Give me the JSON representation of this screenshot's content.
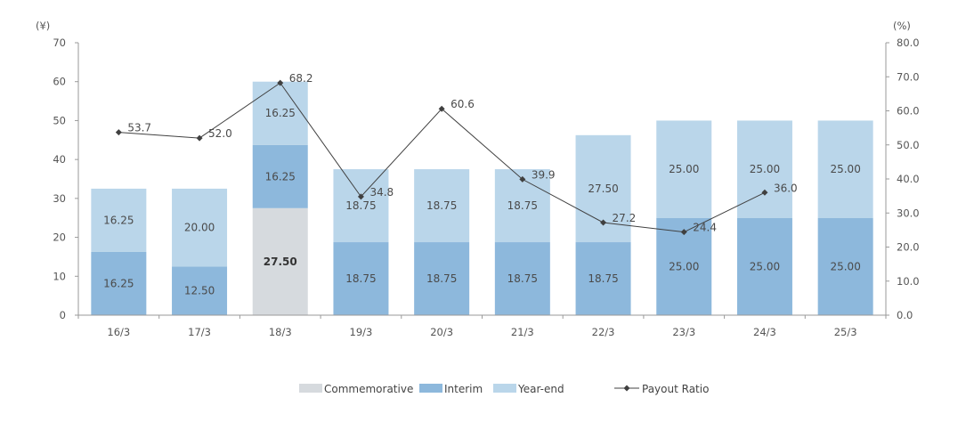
{
  "chart_data": {
    "type": "bar",
    "stacked": true,
    "categories": [
      "16/3",
      "17/3",
      "18/3",
      "19/3",
      "20/3",
      "21/3",
      "22/3",
      "23/3",
      "24/3",
      "25/3"
    ],
    "series": [
      {
        "name": "Commemorative",
        "values": [
          0,
          0,
          27.5,
          0,
          0,
          0,
          0,
          0,
          0,
          0
        ],
        "labels": [
          "",
          "",
          "27.50",
          "",
          "",
          "",
          "",
          "",
          "",
          ""
        ],
        "color": "#d6dade"
      },
      {
        "name": "Interim",
        "values": [
          16.25,
          12.5,
          16.25,
          18.75,
          18.75,
          18.75,
          18.75,
          25,
          25,
          25
        ],
        "labels": [
          "16.25",
          "12.50",
          "16.25",
          "18.75",
          "18.75",
          "18.75",
          "18.75",
          "25.00",
          "25.00",
          "25.00"
        ],
        "color": "#8db8dc"
      },
      {
        "name": "Year-end",
        "values": [
          16.25,
          20,
          16.25,
          18.75,
          18.75,
          18.75,
          27.5,
          25,
          25,
          25
        ],
        "labels": [
          "16.25",
          "20.00",
          "16.25",
          "18.75",
          "18.75",
          "18.75",
          "27.50",
          "25.00",
          "25.00",
          "25.00"
        ],
        "color": "#bad6ea"
      }
    ],
    "line": {
      "name": "Payout Ratio",
      "axis": "right",
      "values": [
        53.7,
        52.0,
        68.2,
        34.8,
        60.6,
        39.9,
        27.2,
        24.4,
        36.0,
        null
      ],
      "labels": [
        "53.7",
        "52.0",
        "68.2",
        "34.8",
        "60.6",
        "39.9",
        "27.2",
        "24.4",
        "36.0",
        ""
      ],
      "color": "#404040"
    },
    "y_left": {
      "unit": "(¥)",
      "ylim": [
        0,
        70
      ],
      "ticks": [
        "0",
        "10",
        "20",
        "30",
        "40",
        "50",
        "60",
        "70"
      ]
    },
    "y_right": {
      "unit": "(%)",
      "ylim": [
        0,
        80
      ],
      "ticks": [
        "0.0",
        "10.0",
        "20.0",
        "30.0",
        "40.0",
        "50.0",
        "60.0",
        "70.0",
        "80.0"
      ]
    },
    "grid": false,
    "legend_position": "bottom"
  }
}
